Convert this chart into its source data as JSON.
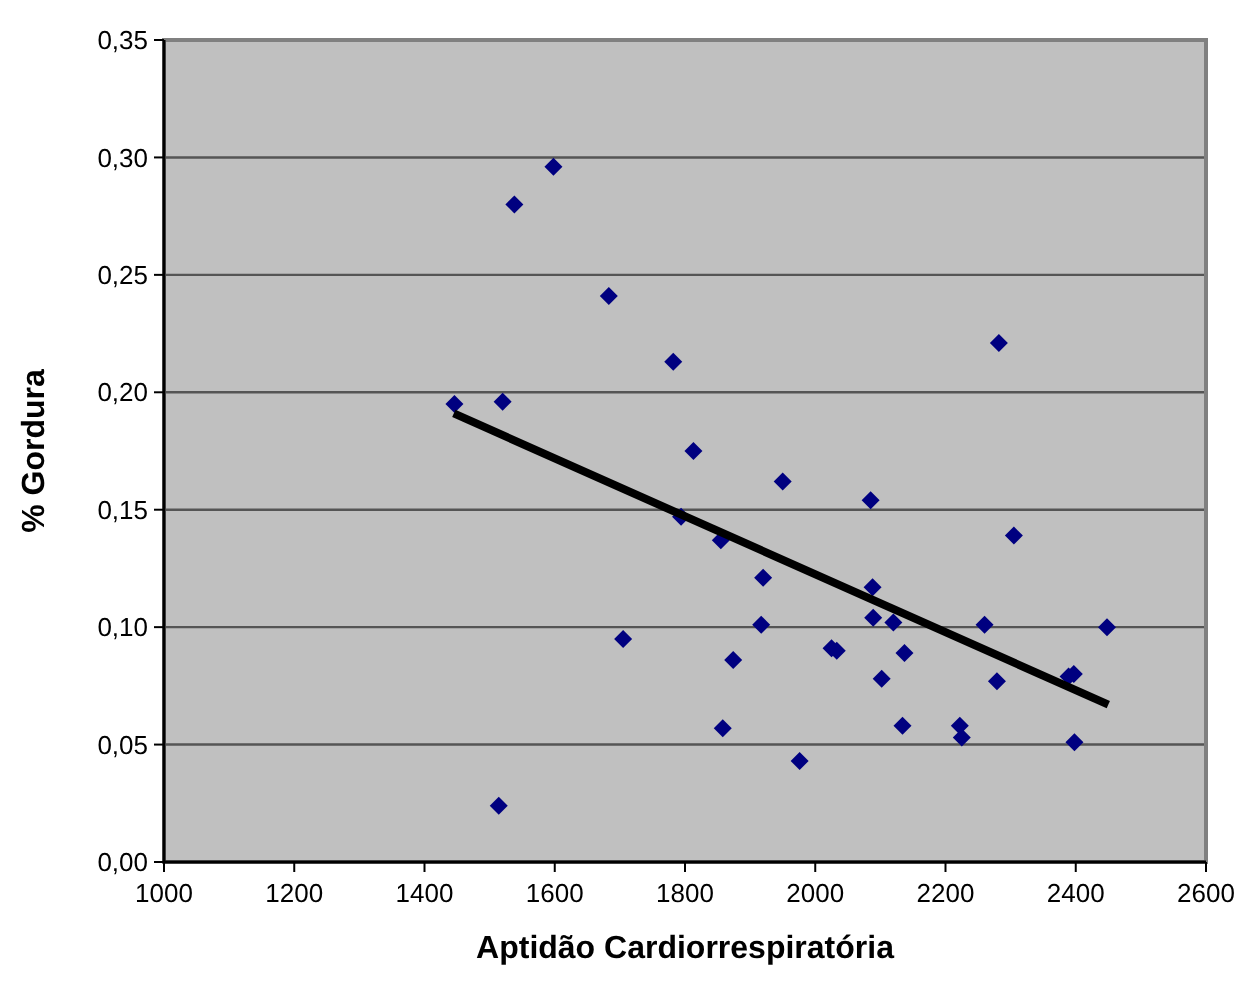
{
  "chart_data": {
    "type": "scatter",
    "xlabel": "Aptidão Cardiorrespiratória",
    "ylabel": "% Gordura",
    "xlim": [
      1000,
      2600
    ],
    "xticks": [
      1000,
      1200,
      1400,
      1600,
      1800,
      2000,
      2200,
      2400,
      2600
    ],
    "ylim": [
      0,
      0.35
    ],
    "yticks": [
      {
        "value": 0,
        "label": "0,00"
      },
      {
        "value": 0.05,
        "label": "0,05"
      },
      {
        "value": 0.1,
        "label": "0,10"
      },
      {
        "value": 0.15,
        "label": "0,15"
      },
      {
        "value": 0.2,
        "label": "0,20"
      },
      {
        "value": 0.25,
        "label": "0,25"
      },
      {
        "value": 0.3,
        "label": "0,30"
      },
      {
        "value": 0.35,
        "label": "0,35"
      }
    ],
    "grid": "y",
    "marker": "diamond",
    "series": [
      {
        "color": "#000080",
        "x": [
          1446,
          1520,
          1538,
          1598,
          1683,
          1782,
          1813,
          1794,
          1705,
          1514,
          1855,
          1950,
          2085,
          1920,
          1917,
          1874,
          1858,
          1976,
          2025,
          2033,
          2088,
          2089,
          2120,
          2137,
          2102,
          2134,
          2222,
          2225,
          2282,
          2305,
          2260,
          2279,
          2389,
          2397,
          2398,
          2448
        ],
        "values": [
          0.195,
          0.196,
          0.28,
          0.296,
          0.241,
          0.213,
          0.175,
          0.147,
          0.095,
          0.024,
          0.137,
          0.162,
          0.154,
          0.121,
          0.101,
          0.086,
          0.057,
          0.043,
          0.091,
          0.09,
          0.117,
          0.104,
          0.102,
          0.089,
          0.078,
          0.058,
          0.058,
          0.053,
          0.221,
          0.139,
          0.101,
          0.077,
          0.079,
          0.08,
          0.051,
          0.1
        ]
      },
      {
        "type": "line",
        "color": "#000000",
        "marker": "none",
        "x": [
          1445,
          2450
        ],
        "values": [
          0.191,
          0.067
        ]
      }
    ]
  }
}
